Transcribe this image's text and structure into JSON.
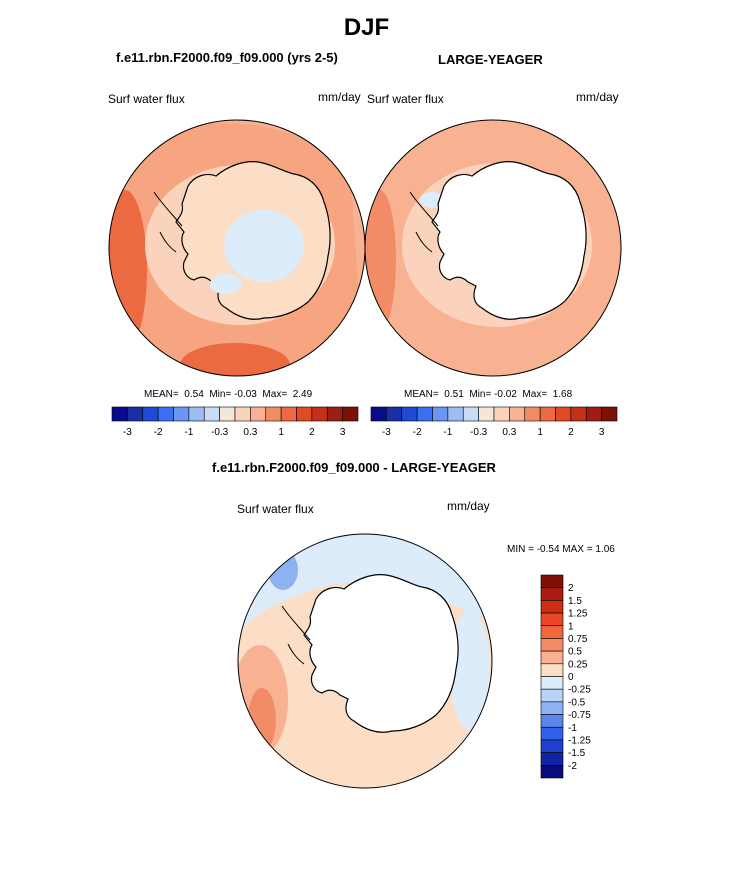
{
  "page": {
    "title": "DJF",
    "left_panel_title": "f.e11.rbn.F2000.f09_f09.000 (yrs 2-5)",
    "right_panel_title": "LARGE-YEAGER",
    "diff_title": "f.e11.rbn.F2000.f09_f09.000 - LARGE-YEAGER"
  },
  "maps": [
    {
      "variable": "Surf water flux",
      "units": "mm/day",
      "stats": {
        "mean_label": "MEAN=",
        "mean": "0.54",
        "min_label": "Min=",
        "min": "-0.03",
        "max_label": "Max=",
        "max": "2.49"
      }
    },
    {
      "variable": "Surf water flux",
      "units": "mm/day",
      "stats": {
        "mean_label": "MEAN=",
        "mean": "0.51",
        "min_label": "Min=",
        "min": "-0.02",
        "max_label": "Max=",
        "max": "1.68"
      }
    },
    {
      "variable": "Surf water flux",
      "units": "mm/day",
      "stats_text": "MIN =  -0.54 MAX =   1.06"
    }
  ],
  "colorbar_top": {
    "labels": [
      "-3",
      "-2",
      "-1",
      "-0.3",
      "0.3",
      "1",
      "2",
      "3"
    ],
    "colors": [
      "#0a0a8f",
      "#1a2ea8",
      "#1f49d6",
      "#3b6ef0",
      "#6d96f2",
      "#9dbbf4",
      "#c8dcf7",
      "#f5e6da",
      "#fbd3bd",
      "#f8b294",
      "#f28c66",
      "#ec6a42",
      "#e04a25",
      "#c6301a",
      "#9e1f12",
      "#7e1006"
    ]
  },
  "colorbar_diff": {
    "labels": [
      "2",
      "1.5",
      "1.25",
      "1",
      "0.75",
      "0.5",
      "0.25",
      "0",
      "-0.25",
      "-0.5",
      "-0.75",
      "-1",
      "-1.25",
      "-1.5",
      "-2"
    ],
    "colors": [
      "#7e1006",
      "#a81b0f",
      "#cc2e14",
      "#e84823",
      "#f0663d",
      "#f38b63",
      "#f8b292",
      "#fcddc6",
      "#dcecfb",
      "#b9d2f6",
      "#8db2f1",
      "#5c86ec",
      "#3360e8",
      "#1f3fcd",
      "#1224a6",
      "#0a0a80"
    ]
  },
  "colors": {
    "ice": "#ffffff",
    "base": "#fcddc6",
    "pale_blue": "#dcecfb",
    "salmon": "#f8b292",
    "orange": "#f28c66",
    "dark_orange": "#ec6a42"
  }
}
